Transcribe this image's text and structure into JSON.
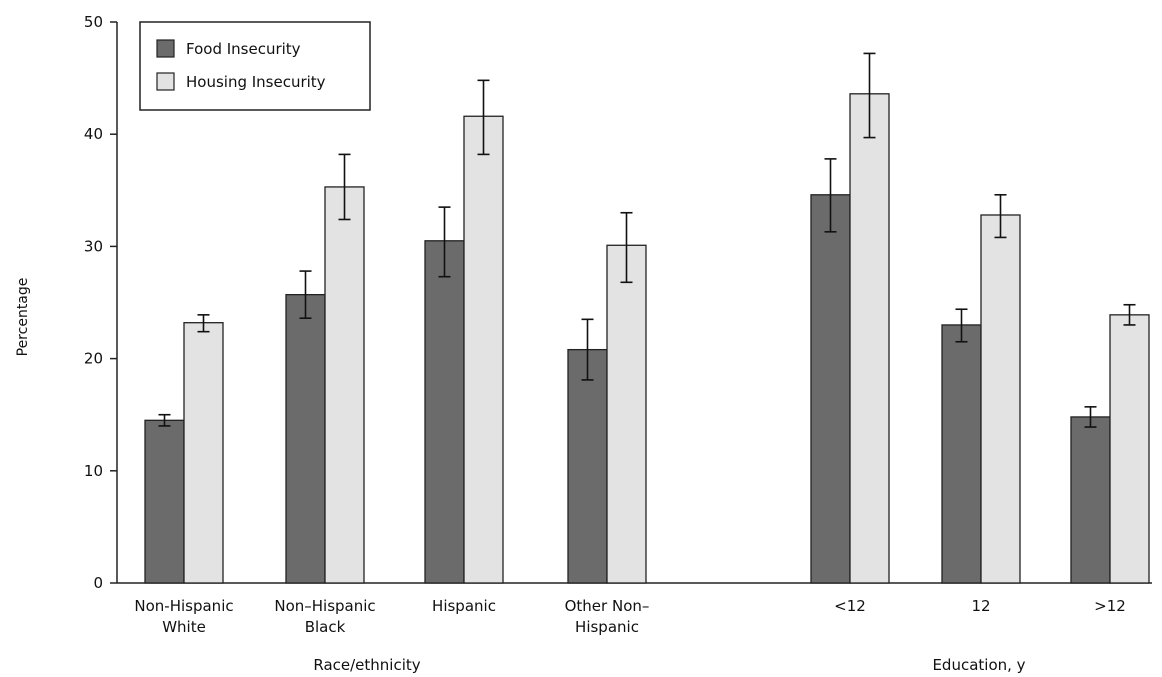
{
  "chart_data": {
    "type": "bar",
    "title": "",
    "xlabel": "",
    "ylabel": "Percentage",
    "ylim": [
      0,
      50
    ],
    "yticks": [
      0,
      10,
      20,
      30,
      40,
      50
    ],
    "grid": false,
    "legend_position": "top-left",
    "categories": [
      [
        "Non-Hispanic",
        "White"
      ],
      [
        "Non–Hispanic",
        "Black"
      ],
      [
        "Hispanic"
      ],
      [
        "Other Non–",
        "Hispanic"
      ],
      [
        "<12"
      ],
      [
        "12"
      ],
      [
        ">12"
      ]
    ],
    "groups": [
      {
        "label": "Race/ethnicity",
        "categories": [
          0,
          1,
          2,
          3
        ]
      },
      {
        "label": "Education, y",
        "categories": [
          4,
          5,
          6
        ]
      }
    ],
    "series": [
      {
        "name": "Food Insecurity",
        "color": "#6b6b6b",
        "values": [
          14.5,
          25.7,
          30.5,
          20.8,
          34.6,
          23.0,
          14.8
        ],
        "error_low": [
          14.0,
          23.6,
          27.3,
          18.1,
          31.3,
          21.5,
          13.9
        ],
        "error_high": [
          15.0,
          27.8,
          33.5,
          23.5,
          37.8,
          24.4,
          15.7
        ]
      },
      {
        "name": "Housing Insecurity",
        "color": "#e3e3e3",
        "values": [
          23.2,
          35.3,
          41.6,
          30.1,
          43.6,
          32.8,
          23.9
        ],
        "error_low": [
          22.4,
          32.4,
          38.2,
          26.8,
          39.7,
          30.8,
          23.0
        ],
        "error_high": [
          23.9,
          38.2,
          44.8,
          33.0,
          47.2,
          34.6,
          24.8
        ]
      }
    ]
  }
}
